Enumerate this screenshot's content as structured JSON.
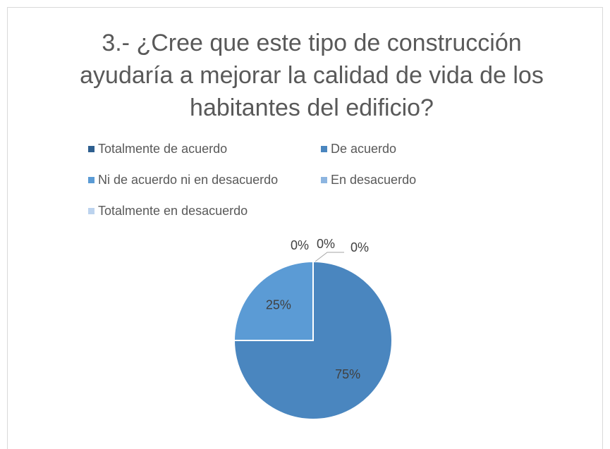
{
  "chart_data": {
    "type": "pie",
    "title": "3.- ¿Cree que este tipo de construcción ayudaría a mejorar la calidad de vida de los habitantes del edificio?",
    "categories": [
      "Totalmente de acuerdo",
      "De acuerdo",
      "Ni de acuerdo ni en desacuerdo",
      "En desacuerdo",
      "Totalmente en desacuerdo"
    ],
    "values": [
      0,
      75,
      25,
      0,
      0
    ],
    "value_labels": [
      "0%",
      "75%",
      "25%",
      "0%",
      "0%"
    ],
    "colors": [
      "#2e5f8f",
      "#4a86bf",
      "#5b9bd5",
      "#8db5e0",
      "#bcd3ee"
    ],
    "legend": "top"
  }
}
